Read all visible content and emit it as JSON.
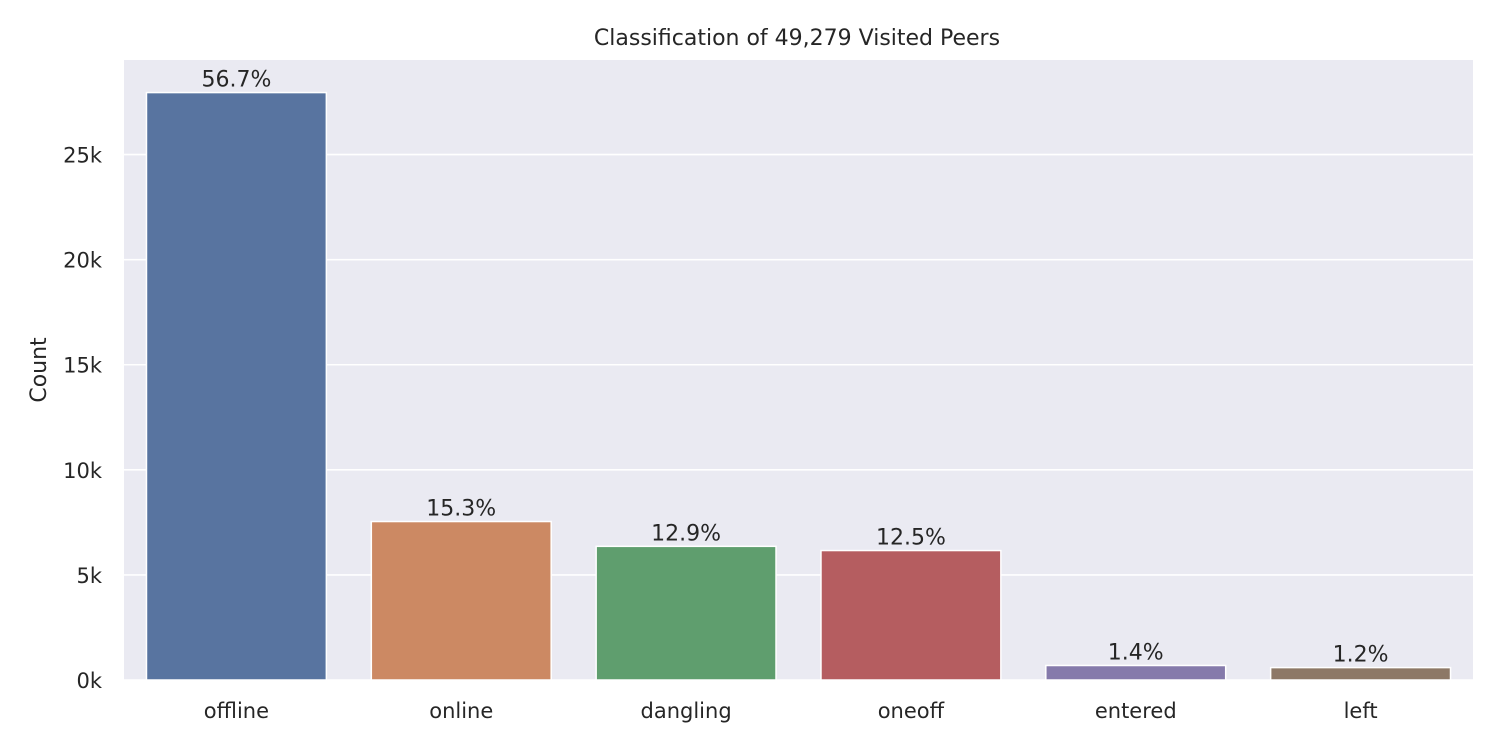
{
  "chart_data": {
    "type": "bar",
    "title": "Classification of 49,279 Visited Peers",
    "xlabel": "",
    "ylabel": "Count",
    "categories": [
      "offline",
      "online",
      "dangling",
      "oneoff",
      "entered",
      "left"
    ],
    "values": [
      27950,
      7540,
      6360,
      6160,
      690,
      590
    ],
    "bar_labels": [
      "56.7%",
      "15.3%",
      "12.9%",
      "12.5%",
      "1.4%",
      "1.2%"
    ],
    "colors": [
      "#5874a0",
      "#cc8963",
      "#5f9e6e",
      "#b55d60",
      "#857aab",
      "#8d7866"
    ],
    "ylim": [
      0,
      29500
    ],
    "yticks": [
      0,
      5000,
      10000,
      15000,
      20000,
      25000
    ],
    "ytick_labels": [
      "0k",
      "5k",
      "10k",
      "15k",
      "20k",
      "25k"
    ],
    "grid": true,
    "background": "#eaeaf2"
  }
}
